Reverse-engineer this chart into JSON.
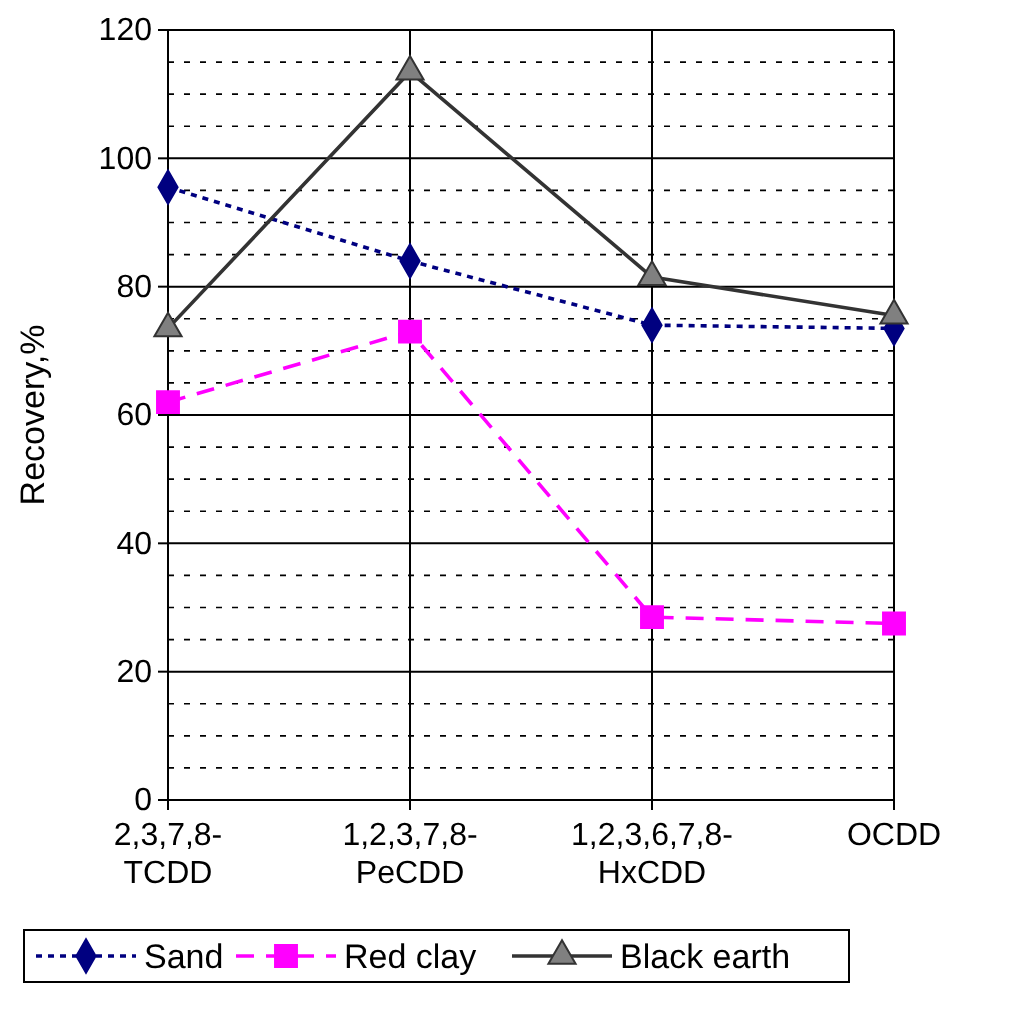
{
  "chart_data": {
    "type": "line",
    "ylabel": "Recovery,%",
    "categories": [
      "2,3,7,8-TCDD",
      "1,2,3,7,8-PeCDD",
      "1,2,3,6,7,8-HxCDD",
      "OCDD"
    ],
    "series": [
      {
        "name": "Sand",
        "color": "#000080",
        "values": [
          95.5,
          84,
          74,
          73.5
        ],
        "marker": "diamond",
        "line_style": "dotted"
      },
      {
        "name": "Red clay",
        "color": "#ff00ff",
        "values": [
          62,
          73,
          28.5,
          27.5
        ],
        "marker": "square",
        "line_style": "dashed"
      },
      {
        "name": "Black earth",
        "color": "#333333",
        "values": [
          73.5,
          113.5,
          81.5,
          75.5
        ],
        "marker": "triangle",
        "line_style": "solid"
      }
    ],
    "ylim": [
      0,
      120
    ],
    "yticks": [
      0,
      {
        "value": 5,
        "label": null
      },
      {
        "value": 10,
        "label": null
      },
      {
        "value": 15,
        "label": null
      },
      20,
      {
        "value": 25,
        "label": null
      },
      {
        "value": 30,
        "label": null
      },
      {
        "value": 35,
        "label": null
      },
      40,
      {
        "value": 45,
        "label": null
      },
      {
        "value": 50,
        "label": null
      },
      {
        "value": 55,
        "label": null
      },
      60,
      {
        "value": 65,
        "label": null
      },
      {
        "value": 70,
        "label": null
      },
      {
        "value": 75,
        "label": null
      },
      80,
      {
        "value": 85,
        "label": null
      },
      {
        "value": 90,
        "label": null
      },
      {
        "value": 95,
        "label": null
      },
      100,
      {
        "value": 105,
        "label": null
      },
      {
        "value": 110,
        "label": null
      },
      {
        "value": 115,
        "label": null
      },
      120
    ],
    "grid": true,
    "legend": "bottom"
  }
}
